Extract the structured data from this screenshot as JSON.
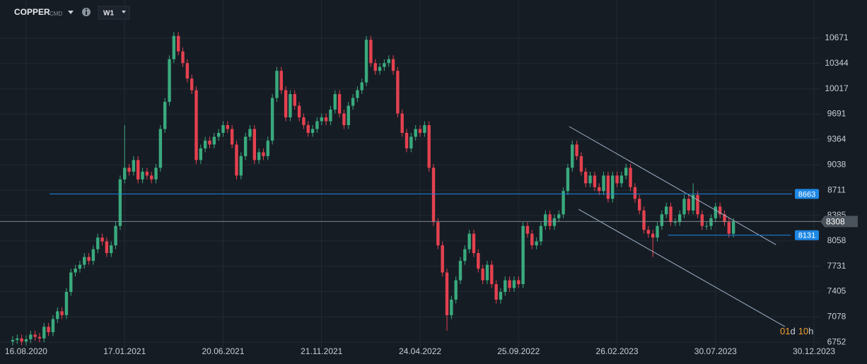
{
  "header": {
    "symbol": "COPPER",
    "market": "CMD",
    "interval": "W1"
  },
  "chart_data": {
    "type": "candlestick",
    "x": [
      0,
      1,
      2,
      3,
      4,
      5,
      6,
      7,
      8,
      9,
      10,
      11,
      12,
      13,
      14,
      15,
      16,
      17,
      18,
      19,
      20,
      21,
      22,
      23,
      24,
      25,
      26,
      27,
      28,
      29,
      30,
      31,
      32,
      33,
      34,
      35,
      36,
      37,
      38,
      39,
      40,
      41,
      42,
      43,
      44,
      45,
      46,
      47,
      48,
      49,
      50,
      51,
      52,
      53,
      54,
      55,
      56,
      57,
      58,
      59,
      60,
      61,
      62,
      63,
      64,
      65,
      66,
      67,
      68,
      69,
      70,
      71,
      72,
      73,
      74,
      75,
      76,
      77,
      78,
      79,
      80,
      81,
      82,
      83,
      84,
      85,
      86,
      87,
      88,
      89,
      90,
      91,
      92,
      93,
      94,
      95,
      96,
      97,
      98,
      99,
      100,
      101,
      102,
      103,
      104,
      105,
      106,
      107,
      108,
      109,
      110,
      111,
      112,
      113,
      114,
      115,
      116,
      117,
      118,
      119,
      120,
      121,
      122,
      123,
      124,
      125,
      126,
      127,
      128,
      129,
      130,
      131,
      132,
      133,
      134,
      135,
      136,
      137,
      138,
      139,
      140,
      141,
      142,
      143,
      144,
      145,
      146,
      147,
      148,
      149,
      150,
      151,
      152,
      153,
      154,
      155,
      156,
      157,
      158,
      159,
      160,
      161
    ],
    "open": [
      6760,
      6780,
      6800,
      6760,
      6790,
      6850,
      6820,
      6800,
      6950,
      6880,
      7050,
      7150,
      7100,
      7400,
      7650,
      7700,
      7750,
      7850,
      7800,
      7950,
      8100,
      8050,
      7900,
      8000,
      8250,
      8850,
      9000,
      8950,
      9100,
      8850,
      8950,
      8900,
      8850,
      9000,
      9500,
      9850,
      10400,
      10700,
      10500,
      10350,
      10150,
      10000,
      9100,
      9250,
      9350,
      9300,
      9400,
      9450,
      9550,
      9500,
      9300,
      8900,
      9150,
      9400,
      9500,
      9100,
      9200,
      9150,
      9350,
      9900,
      10250,
      10000,
      9650,
      9950,
      9800,
      9650,
      9550,
      9450,
      9500,
      9600,
      9650,
      9600,
      9750,
      9950,
      9700,
      9550,
      9800,
      9900,
      10000,
      10100,
      10650,
      10350,
      10250,
      10300,
      10350,
      10400,
      10250,
      9700,
      9450,
      9250,
      9400,
      9500,
      9450,
      9550,
      9000,
      8300,
      8000,
      7650,
      7100,
      7300,
      7550,
      7800,
      7950,
      8150,
      7900,
      7700,
      7550,
      7750,
      7500,
      7300,
      7400,
      7550,
      7450,
      7550,
      7500,
      8250,
      8150,
      8000,
      8050,
      8250,
      8400,
      8250,
      8350,
      8400,
      8700,
      9000,
      9300,
      9150,
      8950,
      8800,
      8900,
      8750,
      8700,
      8900,
      8600,
      8900,
      8800,
      8900,
      9000,
      8750,
      8600,
      8450,
      8200,
      8150,
      8100,
      8250,
      8400,
      8500,
      8300,
      8300,
      8400,
      8600,
      8450,
      8650,
      8400,
      8250,
      8250,
      8350,
      8500,
      8400,
      8300,
      8150
    ],
    "high": [
      6830,
      6850,
      6850,
      6840,
      6900,
      6900,
      6870,
      7000,
      7000,
      7100,
      7200,
      7200,
      7450,
      7700,
      7750,
      7800,
      7900,
      7900,
      8000,
      8150,
      8150,
      8100,
      8050,
      8300,
      8900,
      9550,
      9050,
      9150,
      9150,
      9000,
      9000,
      8950,
      9050,
      9550,
      9900,
      10450,
      10750,
      10750,
      10550,
      10400,
      10200,
      10050,
      9300,
      9400,
      9400,
      9450,
      9500,
      9600,
      9600,
      9550,
      9350,
      9200,
      9450,
      9550,
      9550,
      9250,
      9250,
      9400,
      9950,
      10300,
      10300,
      10050,
      10000,
      10000,
      9850,
      9700,
      9600,
      9550,
      9650,
      9700,
      9700,
      9800,
      10000,
      10000,
      9750,
      9850,
      9950,
      10050,
      10150,
      10700,
      10700,
      10400,
      10350,
      10400,
      10450,
      10450,
      10300,
      9750,
      9500,
      9450,
      9550,
      9550,
      9600,
      9600,
      9050,
      8350,
      8050,
      7700,
      7350,
      7600,
      7850,
      8000,
      8200,
      8200,
      7950,
      7750,
      7800,
      7800,
      7550,
      7450,
      7600,
      7600,
      7600,
      7600,
      8300,
      8300,
      8200,
      8100,
      8300,
      8450,
      8450,
      8400,
      8450,
      8750,
      9050,
      9350,
      9350,
      9200,
      9000,
      8950,
      8950,
      8800,
      8950,
      8950,
      8950,
      8950,
      8950,
      9050,
      9050,
      8800,
      8650,
      8500,
      8250,
      8200,
      8300,
      8450,
      8550,
      8550,
      8350,
      8450,
      8650,
      8650,
      8800,
      8700,
      8450,
      8300,
      8400,
      8550,
      8550,
      8450,
      8350,
      8350
    ],
    "low": [
      6710,
      6730,
      6710,
      6710,
      6740,
      6770,
      6750,
      6750,
      6830,
      6830,
      7000,
      7050,
      7050,
      7350,
      7600,
      7650,
      7700,
      7750,
      7750,
      7900,
      8000,
      7850,
      7850,
      7950,
      8200,
      8800,
      8900,
      8900,
      8800,
      8800,
      8850,
      8800,
      8800,
      8950,
      9450,
      9800,
      10350,
      10450,
      10300,
      10100,
      9950,
      9050,
      9050,
      9200,
      9250,
      9250,
      9350,
      9400,
      9450,
      9250,
      8850,
      8850,
      9100,
      9350,
      9050,
      9050,
      9100,
      9100,
      9300,
      9850,
      9950,
      9600,
      9600,
      9750,
      9600,
      9500,
      9400,
      9400,
      9450,
      9550,
      9550,
      9550,
      9700,
      9650,
      9500,
      9500,
      9750,
      9850,
      9950,
      10050,
      10300,
      10200,
      10200,
      10250,
      10300,
      10200,
      9650,
      9400,
      9200,
      9200,
      9350,
      9400,
      9400,
      8950,
      8250,
      7950,
      7600,
      6900,
      7050,
      7250,
      7500,
      7750,
      7900,
      7850,
      7650,
      7500,
      7500,
      7450,
      7250,
      7250,
      7350,
      7400,
      7400,
      7450,
      7450,
      8100,
      7950,
      7950,
      8000,
      8200,
      8200,
      8200,
      8300,
      8350,
      8650,
      8950,
      9100,
      8900,
      8750,
      8750,
      8700,
      8650,
      8650,
      8550,
      8550,
      8750,
      8750,
      8850,
      8700,
      8550,
      8400,
      8150,
      8100,
      7850,
      8050,
      8200,
      8350,
      8250,
      8250,
      8250,
      8350,
      8400,
      8400,
      8350,
      8200,
      8200,
      8200,
      8300,
      8350,
      8250,
      8100,
      8100
    ],
    "close": [
      6780,
      6800,
      6760,
      6790,
      6850,
      6820,
      6800,
      6950,
      6880,
      7050,
      7150,
      7100,
      7400,
      7650,
      7700,
      7750,
      7850,
      7800,
      7950,
      8100,
      8050,
      7900,
      8000,
      8250,
      8850,
      9000,
      8950,
      9100,
      8850,
      8950,
      8900,
      8850,
      9000,
      9500,
      9850,
      10400,
      10700,
      10500,
      10350,
      10150,
      10000,
      9100,
      9250,
      9350,
      9300,
      9400,
      9450,
      9550,
      9500,
      9300,
      8900,
      9150,
      9400,
      9500,
      9100,
      9200,
      9150,
      9350,
      9900,
      10250,
      10000,
      9650,
      9950,
      9800,
      9650,
      9550,
      9450,
      9500,
      9600,
      9650,
      9600,
      9750,
      9950,
      9700,
      9550,
      9800,
      9900,
      10000,
      10100,
      10650,
      10350,
      10250,
      10300,
      10350,
      10400,
      10250,
      9700,
      9450,
      9250,
      9400,
      9500,
      9450,
      9550,
      9000,
      8300,
      8000,
      7650,
      7100,
      7300,
      7550,
      7800,
      7950,
      8150,
      7900,
      7700,
      7550,
      7750,
      7500,
      7300,
      7400,
      7550,
      7450,
      7550,
      7500,
      8250,
      8150,
      8000,
      8050,
      8250,
      8400,
      8250,
      8350,
      8400,
      8700,
      9000,
      9300,
      9150,
      8950,
      8800,
      8900,
      8750,
      8700,
      8900,
      8600,
      8900,
      8800,
      8900,
      9000,
      8750,
      8600,
      8450,
      8200,
      8150,
      8100,
      8250,
      8400,
      8500,
      8300,
      8300,
      8400,
      8600,
      8450,
      8650,
      8400,
      8250,
      8250,
      8350,
      8500,
      8400,
      8300,
      8150,
      8308
    ],
    "up_color": "#3aaa7e",
    "down_color": "#e4414f",
    "xlim": [
      -2.84,
      180.41
    ],
    "xticks": [
      {
        "value": 3,
        "label": "16.08.2020"
      },
      {
        "value": 25,
        "label": "17.01.2021"
      },
      {
        "value": 47,
        "label": "20.06.2021"
      },
      {
        "value": 69,
        "label": "21.11.2021"
      },
      {
        "value": 91,
        "label": "24.04.2022"
      },
      {
        "value": 113,
        "label": "25.09.2022"
      },
      {
        "value": 135,
        "label": "26.02.2023"
      },
      {
        "value": 157,
        "label": "30.07.2023"
      },
      {
        "value": 179,
        "label": "30.12.2023"
      }
    ],
    "ylim": [
      6680,
      11163
    ],
    "yticks": [
      6752,
      7078,
      7405,
      7731,
      8058,
      8385,
      8711,
      9038,
      9364,
      9691,
      10017,
      10344,
      10671
    ],
    "grid": true,
    "price_lines": [
      {
        "value": 8663,
        "x": [
          8.2,
          174.1
        ],
        "color": "#1e88e5"
      },
      {
        "value": 8131,
        "x": [
          146.4,
          173.8
        ],
        "color": "#1e88e5"
      }
    ],
    "last_price": 8308,
    "last_price_color": "#8a949e",
    "trendlines": [
      {
        "x": [
          124.3,
          170.5
        ],
        "y": [
          9532,
          8009
        ]
      },
      {
        "x": [
          126.4,
          172.5
        ],
        "y": [
          8465,
          6952
        ]
      }
    ],
    "trendline_color": "#9fb3c8",
    "countdown": [
      "01",
      "d",
      "10",
      "h"
    ]
  }
}
